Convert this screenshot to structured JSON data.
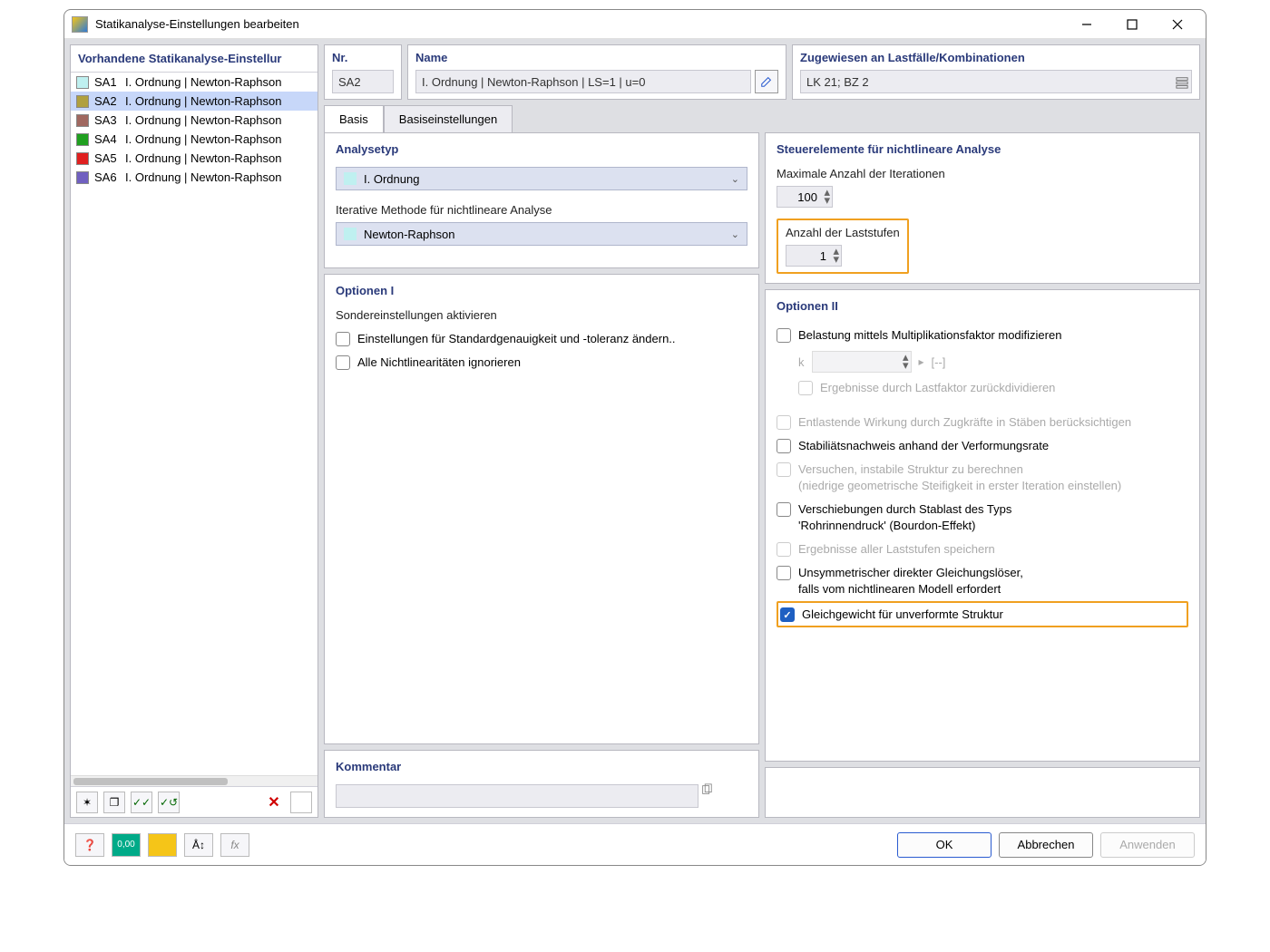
{
  "window": {
    "title": "Statikanalyse-Einstellungen bearbeiten"
  },
  "sidebar": {
    "header": "Vorhandene Statikanalyse-Einstellur",
    "items": [
      {
        "id": "SA1",
        "label": "I. Ordnung | Newton-Raphson",
        "color": "#bff0f0"
      },
      {
        "id": "SA2",
        "label": "I. Ordnung | Newton-Raphson",
        "color": "#b0a040",
        "selected": true
      },
      {
        "id": "SA3",
        "label": "I. Ordnung | Newton-Raphson",
        "color": "#a06860"
      },
      {
        "id": "SA4",
        "label": "I. Ordnung | Newton-Raphson",
        "color": "#20a020"
      },
      {
        "id": "SA5",
        "label": "I. Ordnung | Newton-Raphson",
        "color": "#e02020"
      },
      {
        "id": "SA6",
        "label": "I. Ordnung | Newton-Raphson",
        "color": "#7060c0"
      }
    ]
  },
  "header": {
    "nr_label": "Nr.",
    "nr_value": "SA2",
    "name_label": "Name",
    "name_value": "I. Ordnung | Newton-Raphson | LS=1 | u=0",
    "assign_label": "Zugewiesen an Lastfälle/Kombinationen",
    "assign_value": "LK 21; BZ 2"
  },
  "tabs": {
    "basis": "Basis",
    "basiseinstellungen": "Basiseinstellungen"
  },
  "analysetyp": {
    "header": "Analysetyp",
    "method_value": "I. Ordnung",
    "method_color": "#bff0f0",
    "iter_label": "Iterative Methode für nichtlineare Analyse",
    "iter_value": "Newton-Raphson",
    "iter_color": "#bff0f0"
  },
  "controls": {
    "header": "Steuerelemente für nichtlineare Analyse",
    "max_iter_label": "Maximale Anzahl der Iterationen",
    "max_iter_value": "100",
    "load_steps_label": "Anzahl der Laststufen",
    "load_steps_value": "1"
  },
  "options1": {
    "header": "Optionen I",
    "subheader": "Sondereinstellungen aktivieren",
    "chk1": "Einstellungen für Standardgenauigkeit und -toleranz ändern..",
    "chk2": "Alle Nichtlinearitäten ignorieren"
  },
  "options2": {
    "header": "Optionen II",
    "chk_mult": "Belastung mittels Multiplikationsfaktor modifizieren",
    "k_label": "k",
    "k_unit": "[--]",
    "chk_div": "Ergebnisse durch Lastfaktor zurückdividieren",
    "chk_relief": "Entlastende Wirkung durch Zugkräfte in Stäben berücksichtigen",
    "chk_stab": "Stabiliätsnachweis anhand der Verformungsrate",
    "chk_try1": "Versuchen, instabile Struktur zu berechnen",
    "chk_try2": "(niedrige geometrische Steifigkeit in erster Iteration einstellen)",
    "chk_disp1": "Verschiebungen durch Stablast des Typs",
    "chk_disp2": "'Rohrinnendruck' (Bourdon-Effekt)",
    "chk_save": "Ergebnisse aller Laststufen speichern",
    "chk_unsym1": "Unsymmetrischer direkter Gleichungslöser,",
    "chk_unsym2": "falls vom nichtlinearen Modell erfordert",
    "chk_eq": "Gleichgewicht für unverformte Struktur"
  },
  "comment": {
    "header": "Kommentar",
    "value": ""
  },
  "footer": {
    "ok": "OK",
    "cancel": "Abbrechen",
    "apply": "Anwenden"
  },
  "colors": {
    "highlight_border": "#f0a020",
    "accent": "#2a3a7a",
    "checked": "#1e5fc2"
  }
}
